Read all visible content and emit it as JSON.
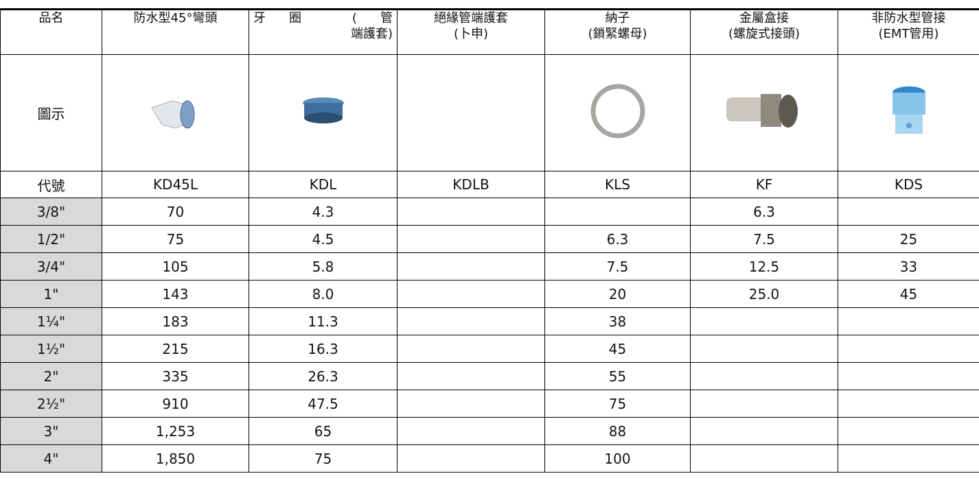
{
  "table": {
    "header": [
      [
        "品名"
      ],
      [
        "防水型45°彎頭"
      ],
      [
        "牙圈 (管",
        "端護套)"
      ],
      [
        "絕緣管端護套",
        "(卜申)"
      ],
      [
        "納子",
        "(鎖緊螺母)"
      ],
      [
        "金屬盒接",
        "(螺旋式接頭)"
      ],
      [
        "非防水型管接",
        "(EMT管用)"
      ]
    ],
    "image_row_label": "圖示",
    "code_row": [
      "代號",
      "KD45L",
      "KDL",
      "KDLB",
      "KLS",
      "KF",
      "KDS"
    ],
    "rows": [
      [
        "3/8\"",
        "70",
        "4.3",
        null,
        null,
        "6.3",
        null
      ],
      [
        "1/2\"",
        "75",
        "4.5",
        null,
        "6.3",
        "7.5",
        "25"
      ],
      [
        "3/4\"",
        "105",
        "5.8",
        null,
        "7.5",
        "12.5",
        "33"
      ],
      [
        "1\"",
        "143",
        "8.0",
        null,
        "20",
        "25.0",
        "45"
      ],
      [
        "1¼\"",
        "183",
        "11.3",
        null,
        "38",
        null,
        null
      ],
      [
        "1½\"",
        "215",
        "16.3",
        null,
        "45",
        null,
        null
      ],
      [
        "2\"",
        "335",
        "26.3",
        null,
        "55",
        null,
        null
      ],
      [
        "2½\"",
        "910",
        "47.5",
        null,
        "75",
        null,
        null
      ],
      [
        "3\"",
        "1,253",
        "65",
        null,
        "88",
        null,
        null
      ],
      [
        "4\"",
        "1,850",
        "75",
        null,
        "100",
        null,
        null
      ]
    ]
  }
}
